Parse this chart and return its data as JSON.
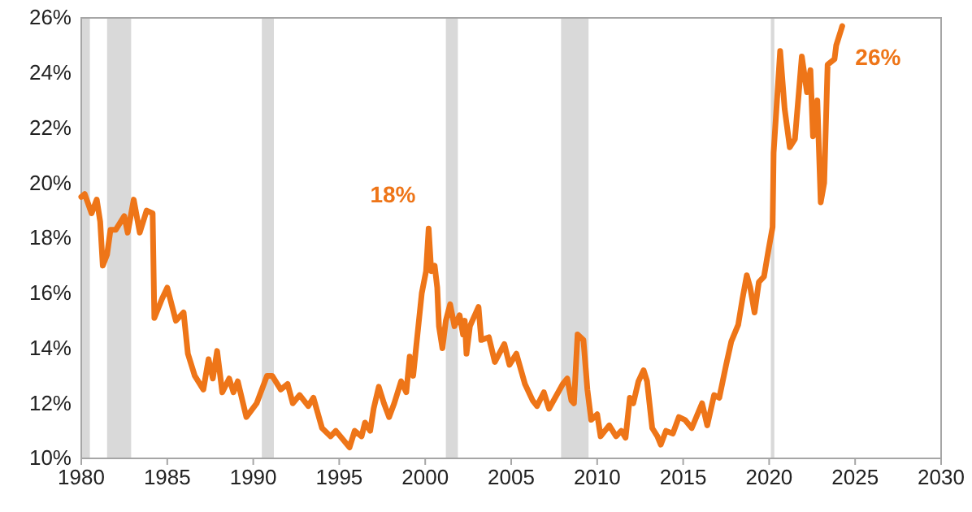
{
  "chart_data": {
    "type": "line",
    "x": [
      1980.0,
      1980.2,
      1980.6,
      1980.9,
      1981.1,
      1981.25,
      1981.5,
      1981.7,
      1982.0,
      1982.5,
      1982.7,
      1983.05,
      1983.4,
      1983.8,
      1984.15,
      1984.25,
      1984.7,
      1985.0,
      1985.5,
      1985.95,
      1986.2,
      1986.6,
      1987.1,
      1987.4,
      1987.65,
      1987.9,
      1988.2,
      1988.6,
      1988.85,
      1989.1,
      1989.6,
      1990.2,
      1990.8,
      1991.1,
      1991.6,
      1992.0,
      1992.3,
      1992.7,
      1993.2,
      1993.5,
      1994.0,
      1994.5,
      1994.8,
      1995.6,
      1995.9,
      1996.3,
      1996.5,
      1996.8,
      1997.0,
      1997.3,
      1997.6,
      1997.9,
      1998.2,
      1998.6,
      1998.9,
      1999.1,
      1999.3,
      1999.65,
      1999.8,
      2000.05,
      2000.2,
      2000.35,
      2000.55,
      2000.7,
      2000.8,
      2001.0,
      2001.2,
      2001.45,
      2001.7,
      2002.0,
      2002.2,
      2002.3,
      2002.4,
      2002.6,
      2003.1,
      2003.26,
      2003.7,
      2004.05,
      2004.6,
      2004.9,
      2005.3,
      2005.8,
      2006.25,
      2006.5,
      2006.9,
      2007.2,
      2008.0,
      2008.26,
      2008.5,
      2008.65,
      2008.86,
      2009.2,
      2009.43,
      2009.65,
      2010.0,
      2010.2,
      2010.7,
      2011.1,
      2011.4,
      2011.65,
      2011.9,
      2012.1,
      2012.4,
      2012.7,
      2012.9,
      2013.2,
      2013.5,
      2013.7,
      2014.0,
      2014.4,
      2014.75,
      2015.1,
      2015.5,
      2016.1,
      2016.4,
      2016.8,
      2017.1,
      2017.5,
      2017.8,
      2018.2,
      2018.45,
      2018.7,
      2018.9,
      2019.15,
      2019.4,
      2019.7,
      2019.97,
      2020.2,
      2020.26,
      2020.64,
      2020.9,
      2021.2,
      2021.5,
      2021.9,
      2022.2,
      2022.4,
      2022.55,
      2022.8,
      2023.0,
      2023.2,
      2023.4,
      2023.8,
      2023.9,
      2024.15,
      2024.25
    ],
    "series": [
      {
        "color": "#ee7518",
        "values": [
          19.5,
          19.6,
          18.9,
          19.4,
          18.6,
          17.0,
          17.4,
          18.3,
          18.3,
          18.8,
          18.2,
          19.4,
          18.2,
          19.0,
          18.9,
          15.1,
          15.8,
          16.2,
          15.0,
          15.3,
          13.8,
          13.0,
          12.5,
          13.6,
          12.9,
          13.9,
          12.4,
          12.9,
          12.4,
          12.8,
          11.5,
          12.0,
          13.0,
          13.0,
          12.5,
          12.7,
          12.0,
          12.3,
          11.9,
          12.2,
          11.1,
          10.8,
          11.0,
          10.4,
          11.0,
          10.8,
          11.3,
          11.0,
          11.8,
          12.6,
          12.0,
          11.5,
          12.0,
          12.8,
          12.4,
          13.7,
          13.0,
          15.1,
          16.0,
          16.8,
          18.35,
          16.8,
          17.0,
          16.2,
          14.8,
          14.0,
          15.0,
          15.6,
          14.8,
          15.2,
          14.5,
          15.0,
          13.8,
          14.8,
          15.5,
          14.3,
          14.4,
          13.5,
          14.15,
          13.4,
          13.8,
          12.7,
          12.1,
          11.9,
          12.4,
          11.8,
          12.7,
          12.9,
          12.1,
          12.0,
          14.5,
          14.3,
          12.5,
          11.4,
          11.6,
          10.8,
          11.2,
          10.8,
          11.0,
          10.75,
          12.2,
          12.0,
          12.8,
          13.2,
          12.8,
          11.1,
          10.8,
          10.5,
          11.0,
          10.9,
          11.5,
          11.4,
          11.1,
          12.0,
          11.2,
          12.3,
          12.2,
          13.4,
          14.25,
          14.85,
          15.8,
          16.65,
          16.2,
          15.3,
          16.4,
          16.6,
          17.6,
          18.4,
          21.1,
          24.8,
          22.7,
          21.3,
          21.6,
          24.6,
          23.3,
          24.1,
          21.7,
          23.0,
          19.3,
          20.0,
          24.3,
          24.5,
          25.0,
          25.5,
          25.7
        ]
      }
    ],
    "xlim": [
      1980,
      2030
    ],
    "xticks": [
      1980,
      1985,
      1990,
      1995,
      2000,
      2005,
      2010,
      2015,
      2020,
      2025,
      2030
    ],
    "ylim": [
      10,
      26
    ],
    "yticks": [
      {
        "value": 10,
        "label": "10%"
      },
      {
        "value": 12,
        "label": "12%"
      },
      {
        "value": 14,
        "label": "14%"
      },
      {
        "value": 16,
        "label": "16%"
      },
      {
        "value": 18,
        "label": "18%"
      },
      {
        "value": 20,
        "label": "20%"
      },
      {
        "value": 22,
        "label": "22%"
      },
      {
        "value": 24,
        "label": "24%"
      },
      {
        "value": 26,
        "label": "26%"
      }
    ],
    "bands": [
      {
        "axis": "x",
        "from": 1980.0,
        "to": 1980.5,
        "color": "#d9d9d9"
      },
      {
        "axis": "x",
        "from": 1981.5,
        "to": 1982.9,
        "color": "#d9d9d9"
      },
      {
        "axis": "x",
        "from": 1990.5,
        "to": 1991.2,
        "color": "#d9d9d9"
      },
      {
        "axis": "x",
        "from": 2001.2,
        "to": 2001.9,
        "color": "#d9d9d9"
      },
      {
        "axis": "x",
        "from": 2007.9,
        "to": 2009.5,
        "color": "#d9d9d9"
      },
      {
        "axis": "x",
        "from": 2020.1,
        "to": 2020.3,
        "color": "#d9d9d9"
      }
    ],
    "annotations": [
      {
        "text": "18%",
        "x": 2000.2,
        "y": 18.35
      },
      {
        "text": "26%",
        "x": 2024.25,
        "y": 25.7
      }
    ],
    "grid": false
  }
}
